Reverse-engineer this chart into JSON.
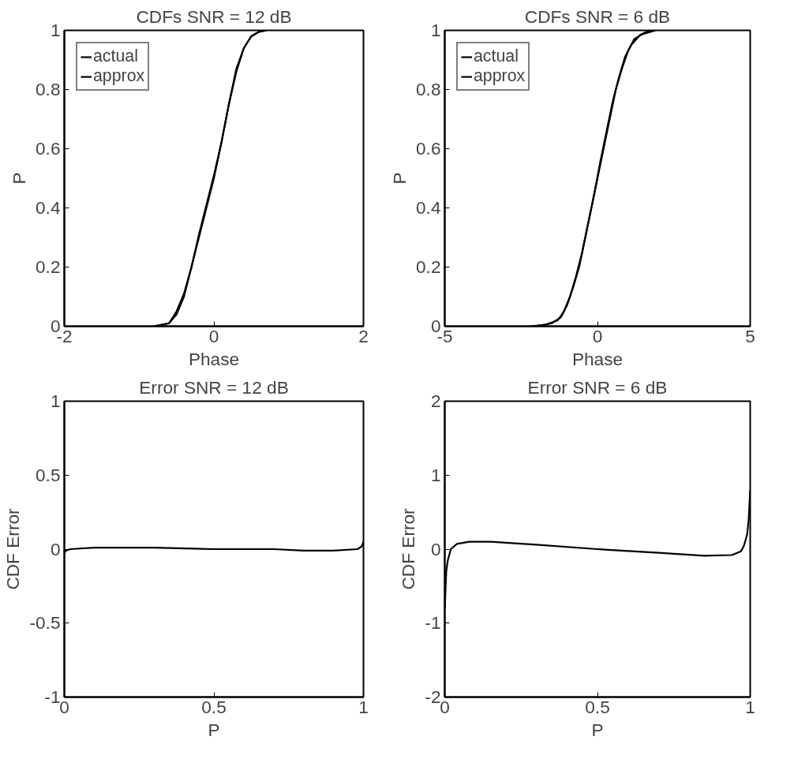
{
  "chart_data": [
    {
      "type": "line",
      "title": "CDFs SNR = 12 dB",
      "xlabel": "Phase",
      "ylabel": "P",
      "xlim": [
        -2,
        2
      ],
      "xticks": [
        -2,
        0,
        2
      ],
      "ylim": [
        0,
        1
      ],
      "yticks": [
        0,
        0.2,
        0.4,
        0.6,
        0.8,
        1
      ],
      "grid": false,
      "legend": "top left",
      "series": [
        {
          "name": "actual",
          "color": "#000000",
          "x": [
            -0.8,
            -0.6,
            -0.5,
            -0.4,
            -0.3,
            -0.2,
            -0.1,
            0,
            0.1,
            0.2,
            0.3,
            0.4,
            0.5,
            0.6,
            0.7
          ],
          "values": [
            0,
            0.01,
            0.04,
            0.1,
            0.2,
            0.3,
            0.4,
            0.5,
            0.62,
            0.75,
            0.87,
            0.94,
            0.98,
            0.995,
            1
          ]
        },
        {
          "name": "approx",
          "color": "#000000",
          "x": [
            -0.8,
            -0.6,
            -0.5,
            -0.4,
            -0.3,
            -0.2,
            -0.1,
            0,
            0.1,
            0.2,
            0.3,
            0.4,
            0.5,
            0.6,
            0.7
          ],
          "values": [
            0,
            0.01,
            0.05,
            0.11,
            0.2,
            0.31,
            0.41,
            0.51,
            0.62,
            0.75,
            0.86,
            0.94,
            0.98,
            0.995,
            1
          ]
        }
      ]
    },
    {
      "type": "line",
      "title": "CDFs SNR = 6 dB",
      "xlabel": "Phase",
      "ylabel": "P",
      "xlim": [
        -5,
        5
      ],
      "xticks": [
        -5,
        0,
        5
      ],
      "ylim": [
        0,
        1
      ],
      "yticks": [
        0,
        0.2,
        0.4,
        0.6,
        0.8,
        1
      ],
      "grid": false,
      "legend": "top left",
      "series": [
        {
          "name": "actual",
          "color": "#000000",
          "x": [
            -2,
            -1.5,
            -1.2,
            -1,
            -0.8,
            -0.6,
            -0.4,
            -0.2,
            0,
            0.2,
            0.4,
            0.6,
            0.8,
            1,
            1.2,
            1.5,
            1.7
          ],
          "values": [
            0,
            0.01,
            0.03,
            0.07,
            0.13,
            0.2,
            0.3,
            0.4,
            0.5,
            0.6,
            0.7,
            0.8,
            0.87,
            0.93,
            0.97,
            0.99,
            1
          ]
        },
        {
          "name": "approx",
          "color": "#000000",
          "x": [
            -2.2,
            -1.7,
            -1.3,
            -1.1,
            -0.9,
            -0.7,
            -0.5,
            -0.3,
            -0.1,
            0.1,
            0.3,
            0.5,
            0.7,
            0.9,
            1.1,
            1.4,
            1.9
          ],
          "values": [
            0,
            0.005,
            0.02,
            0.05,
            0.1,
            0.17,
            0.25,
            0.35,
            0.45,
            0.56,
            0.66,
            0.76,
            0.84,
            0.91,
            0.95,
            0.985,
            1
          ]
        }
      ]
    },
    {
      "type": "line",
      "title": "Error SNR = 12 dB",
      "xlabel": "P",
      "ylabel": "CDF Error",
      "xlim": [
        0,
        1
      ],
      "xticks": [
        0,
        0.5,
        1
      ],
      "ylim": [
        -1,
        1
      ],
      "yticks": [
        -1,
        -0.5,
        0,
        0.5,
        1
      ],
      "grid": false,
      "series": [
        {
          "color": "#000000",
          "x": [
            0,
            0.005,
            0.02,
            0.1,
            0.2,
            0.3,
            0.5,
            0.7,
            0.8,
            0.9,
            0.98,
            0.995,
            1
          ],
          "values": [
            -0.03,
            -0.01,
            0,
            0.01,
            0.01,
            0.01,
            0,
            0,
            -0.01,
            -0.01,
            0,
            0.02,
            0.05
          ]
        }
      ]
    },
    {
      "type": "line",
      "title": "Error SNR = 6 dB",
      "xlabel": "P",
      "ylabel": "CDF Error",
      "xlim": [
        0,
        1
      ],
      "xticks": [
        0,
        0.5,
        1
      ],
      "ylim": [
        -2,
        2
      ],
      "yticks": [
        -2,
        -1,
        0,
        1,
        2
      ],
      "grid": false,
      "series": [
        {
          "color": "#000000",
          "x": [
            0,
            0.005,
            0.01,
            0.02,
            0.04,
            0.08,
            0.15,
            0.3,
            0.5,
            0.7,
            0.85,
            0.94,
            0.97,
            0.98,
            0.99,
            0.995,
            1
          ],
          "values": [
            -0.8,
            -0.3,
            -0.15,
            0,
            0.07,
            0.1,
            0.1,
            0.06,
            0,
            -0.05,
            -0.09,
            -0.08,
            -0.03,
            0.05,
            0.2,
            0.4,
            0.8
          ]
        }
      ]
    }
  ]
}
